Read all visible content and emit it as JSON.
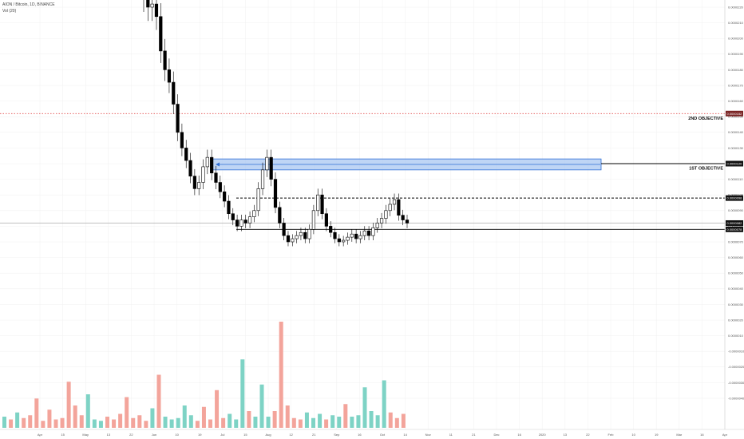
{
  "header": {
    "symbol_line": "AION / Bitcoin, 1D, BINANCE",
    "indicator_line": "Vol (20)"
  },
  "colors": {
    "up_body": "#ffffff",
    "candle_outline": "#000000",
    "vol_up": "#7ed3c5",
    "vol_down": "#f3a49b",
    "zone_fill": "#a9c7f2",
    "zone_stroke": "#2f6fd6",
    "objective_line": "#000000",
    "objective2_line": "#e34d4d",
    "tag_dark": "#111111",
    "tag_red": "#7a2424",
    "grid": "#f0f0f0"
  },
  "labels": {
    "first_objective": "1ST OBJECTIVE",
    "second_objective": "2ND OBJECTIVE"
  },
  "chart_data": {
    "type": "candlestick",
    "price_axis_ticks": [
      "0.0000220",
      "0.0000210",
      "0.0000200",
      "0.0000190",
      "0.0000180",
      "0.0000170",
      "0.0000160",
      "0.0000150",
      "0.0000140",
      "0.0000130",
      "0.0000120",
      "0.0000110",
      "0.0000100",
      "0.0000090",
      "0.0000080",
      "0.0000070",
      "0.0000060",
      "0.0000050",
      "0.0000040",
      "0.0000030",
      "0.0000020",
      "0.0000010",
      "-0.0000010",
      "-0.0000020",
      "-0.0000030",
      "-0.0000040"
    ],
    "price_levels": [
      {
        "name": "2nd objective",
        "value": 1.52e-05,
        "tag": "0.0000152",
        "style": "dotted-red"
      },
      {
        "name": "1st objective",
        "value": 1.2e-05,
        "tag": "0.0000120",
        "style": "solid"
      },
      {
        "name": "resistance",
        "value": 9.8e-06,
        "tag": "0.0000098",
        "style": "dashed"
      },
      {
        "name": "current",
        "value": 8.2e-06,
        "tag": "0.0000082",
        "style": "solid-gray"
      },
      {
        "name": "support",
        "value": 7.8e-06,
        "tag": "0.0000078",
        "style": "solid"
      }
    ],
    "zone": {
      "low": 1.16e-05,
      "high": 1.23e-05
    },
    "date_axis_ticks": [
      "Apr",
      "15",
      "May",
      "13",
      "22",
      "Jun",
      "10",
      "19",
      "Jul",
      "15",
      "Aug",
      "12",
      "21",
      "Sep",
      "16",
      "Oct",
      "14",
      "Nov",
      "11",
      "21",
      "Dec",
      "16",
      "2020",
      "13",
      "22",
      "Feb",
      "10",
      "19",
      "Mar",
      "16",
      "Apr"
    ],
    "closes": [
      2.26e-05,
      2.2e-05,
      2.22e-05,
      2.14e-05,
      1.92e-05,
      1.8e-05,
      1.72e-05,
      1.58e-05,
      1.4e-05,
      1.3e-05,
      1.22e-05,
      1.12e-05,
      1.04e-05,
      1.08e-05,
      1.18e-05,
      1.24e-05,
      1.14e-05,
      1.08e-05,
      1.02e-05,
      9.6e-06,
      8.8e-06,
      8.4e-06,
      8e-06,
      8.4e-06,
      8.2e-06,
      8.6e-06,
      9e-06,
      1.04e-05,
      1.16e-05,
      1.24e-05,
      1.1e-05,
      9.2e-06,
      8.2e-06,
      7.4e-06,
      7e-06,
      7.2e-06,
      7.4e-06,
      7.6e-06,
      7.2e-06,
      7.8e-06,
      9e-06,
      1e-05,
      8.8e-06,
      8e-06,
      7.6e-06,
      7.2e-06,
      7e-06,
      7.1e-06,
      7.3e-06,
      7.5e-06,
      7.2e-06,
      7.4e-06,
      7.7e-06,
      7.4e-06,
      7.9e-06,
      8.2e-06,
      8.5e-06,
      9e-06,
      9.4e-06,
      9.7e-06,
      8.7e-06,
      8.4e-06,
      8.2e-06
    ],
    "volumes": [
      0.8,
      0.6,
      1.1,
      0.7,
      0.9,
      2.1,
      0.5,
      1.3,
      0.6,
      0.7,
      3.3,
      1.6,
      0.9,
      2.4,
      0.6,
      0.5,
      0.8,
      0.6,
      1.0,
      2.2,
      0.7,
      0.9,
      0.5,
      1.4,
      3.8,
      0.8,
      0.6,
      0.7,
      1.6,
      0.9,
      0.5,
      1.5,
      0.6,
      2.7,
      0.7,
      1.0,
      0.6,
      4.9,
      1.2,
      0.8,
      3.1,
      0.8,
      1.2,
      7.6,
      1.6,
      0.7,
      0.6,
      1.1,
      0.7,
      1.0,
      0.6,
      0.9,
      0.8,
      1.7,
      0.8,
      0.9,
      2.9,
      1.2,
      0.9,
      3.4,
      1.1,
      0.7,
      1.0
    ]
  }
}
